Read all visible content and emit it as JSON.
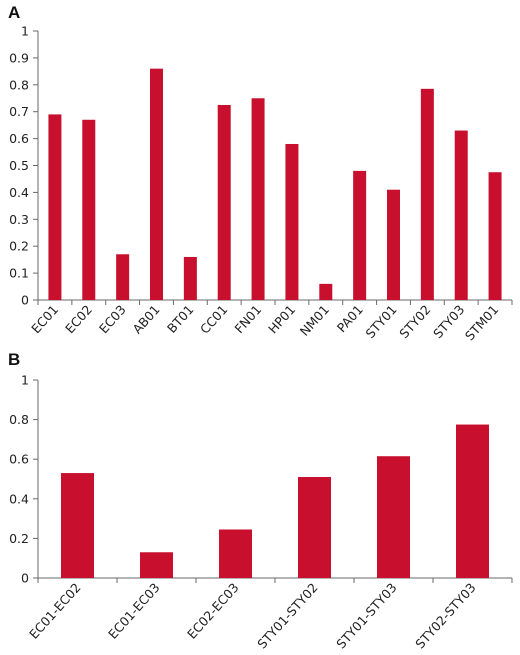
{
  "figure": {
    "bar_color": "#c8102e",
    "axis_color": "#6a6a6a"
  },
  "chart_data": [
    {
      "panel_label": "A",
      "type": "bar",
      "title": "",
      "xlabel": "",
      "ylabel": "",
      "ylim": [
        0,
        1
      ],
      "yticks": [
        0,
        0.1,
        0.2,
        0.3,
        0.4,
        0.5,
        0.6,
        0.7,
        0.8,
        0.9,
        1
      ],
      "ytick_labels": [
        "0",
        "0.1",
        "0.2",
        "0.3",
        "0.4",
        "0.5",
        "0.6",
        "0.7",
        "0.8",
        "0.9",
        "1"
      ],
      "categories": [
        "EC01",
        "EC02",
        "EC03",
        "AB01",
        "BT01",
        "CC01",
        "FN01",
        "HP01",
        "NM01",
        "PA01",
        "STY01",
        "STY02",
        "STY03",
        "STM01"
      ],
      "values": [
        0.69,
        0.67,
        0.17,
        0.86,
        0.16,
        0.725,
        0.75,
        0.58,
        0.06,
        0.48,
        0.41,
        0.785,
        0.63,
        0.475
      ],
      "grid": false,
      "legend": "none"
    },
    {
      "panel_label": "B",
      "type": "bar",
      "title": "",
      "xlabel": "",
      "ylabel": "",
      "ylim": [
        0,
        1
      ],
      "yticks": [
        0,
        0.2,
        0.4,
        0.6,
        0.8,
        1
      ],
      "ytick_labels": [
        "0",
        "0.2",
        "0.4",
        "0.6",
        "0.8",
        "1"
      ],
      "categories": [
        "EC01-EC02",
        "EC01-EC03",
        "EC02-EC03",
        "STY01-STY02",
        "STY01-STY03",
        "STY02-STY03"
      ],
      "values": [
        0.53,
        0.13,
        0.245,
        0.51,
        0.615,
        0.775
      ],
      "grid": false,
      "legend": "none"
    }
  ]
}
